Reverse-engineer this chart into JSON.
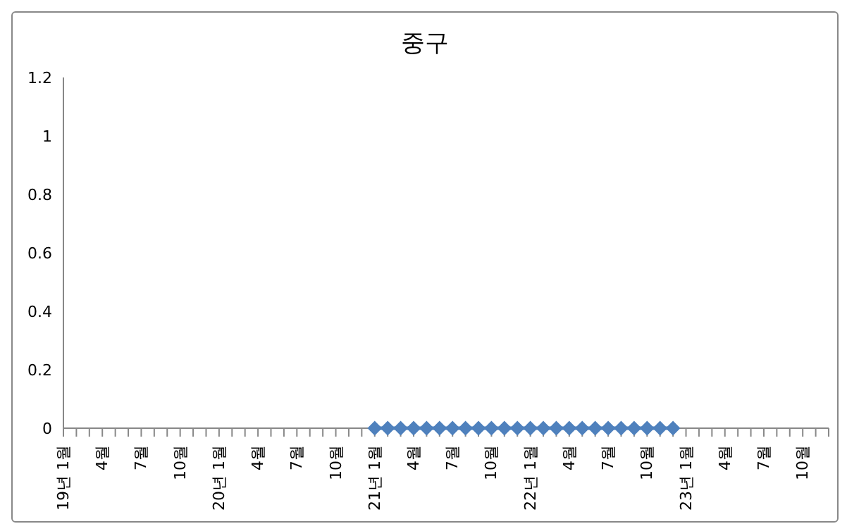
{
  "chart_data": {
    "type": "line",
    "title": "중구",
    "categories": [
      "19년 1월",
      null,
      null,
      "4월",
      null,
      null,
      "7월",
      null,
      null,
      "10월",
      null,
      null,
      "20년 1월",
      null,
      null,
      "4월",
      null,
      null,
      "7월",
      null,
      null,
      "10월",
      null,
      null,
      "21년 1월",
      null,
      null,
      "4월",
      null,
      null,
      "7월",
      null,
      null,
      "10월",
      null,
      null,
      "22년 1월",
      null,
      null,
      "4월",
      null,
      null,
      "7월",
      null,
      null,
      "10월",
      null,
      null,
      "23년 1월",
      null,
      null,
      "4월",
      null,
      null,
      "7월",
      null,
      null,
      "10월",
      null,
      null
    ],
    "series": [
      {
        "color": "#4f81bd",
        "values": [
          null,
          null,
          null,
          null,
          null,
          null,
          null,
          null,
          null,
          null,
          null,
          null,
          null,
          null,
          null,
          null,
          null,
          null,
          null,
          null,
          null,
          null,
          null,
          null,
          0,
          0,
          0,
          0,
          0,
          0,
          0,
          0,
          0,
          0,
          0,
          0,
          0,
          0,
          0,
          0,
          0,
          0,
          0,
          0,
          0,
          0,
          0,
          0,
          null,
          null,
          null,
          null,
          null,
          null,
          null,
          null,
          null,
          null,
          null,
          null
        ]
      }
    ],
    "ylim": [
      0,
      1.2
    ],
    "yticks": [
      0,
      0.2,
      0.4,
      0.6,
      0.8,
      1,
      1.2
    ],
    "grid": false,
    "legend": false,
    "marker": "diamond",
    "line_style": "solid"
  }
}
